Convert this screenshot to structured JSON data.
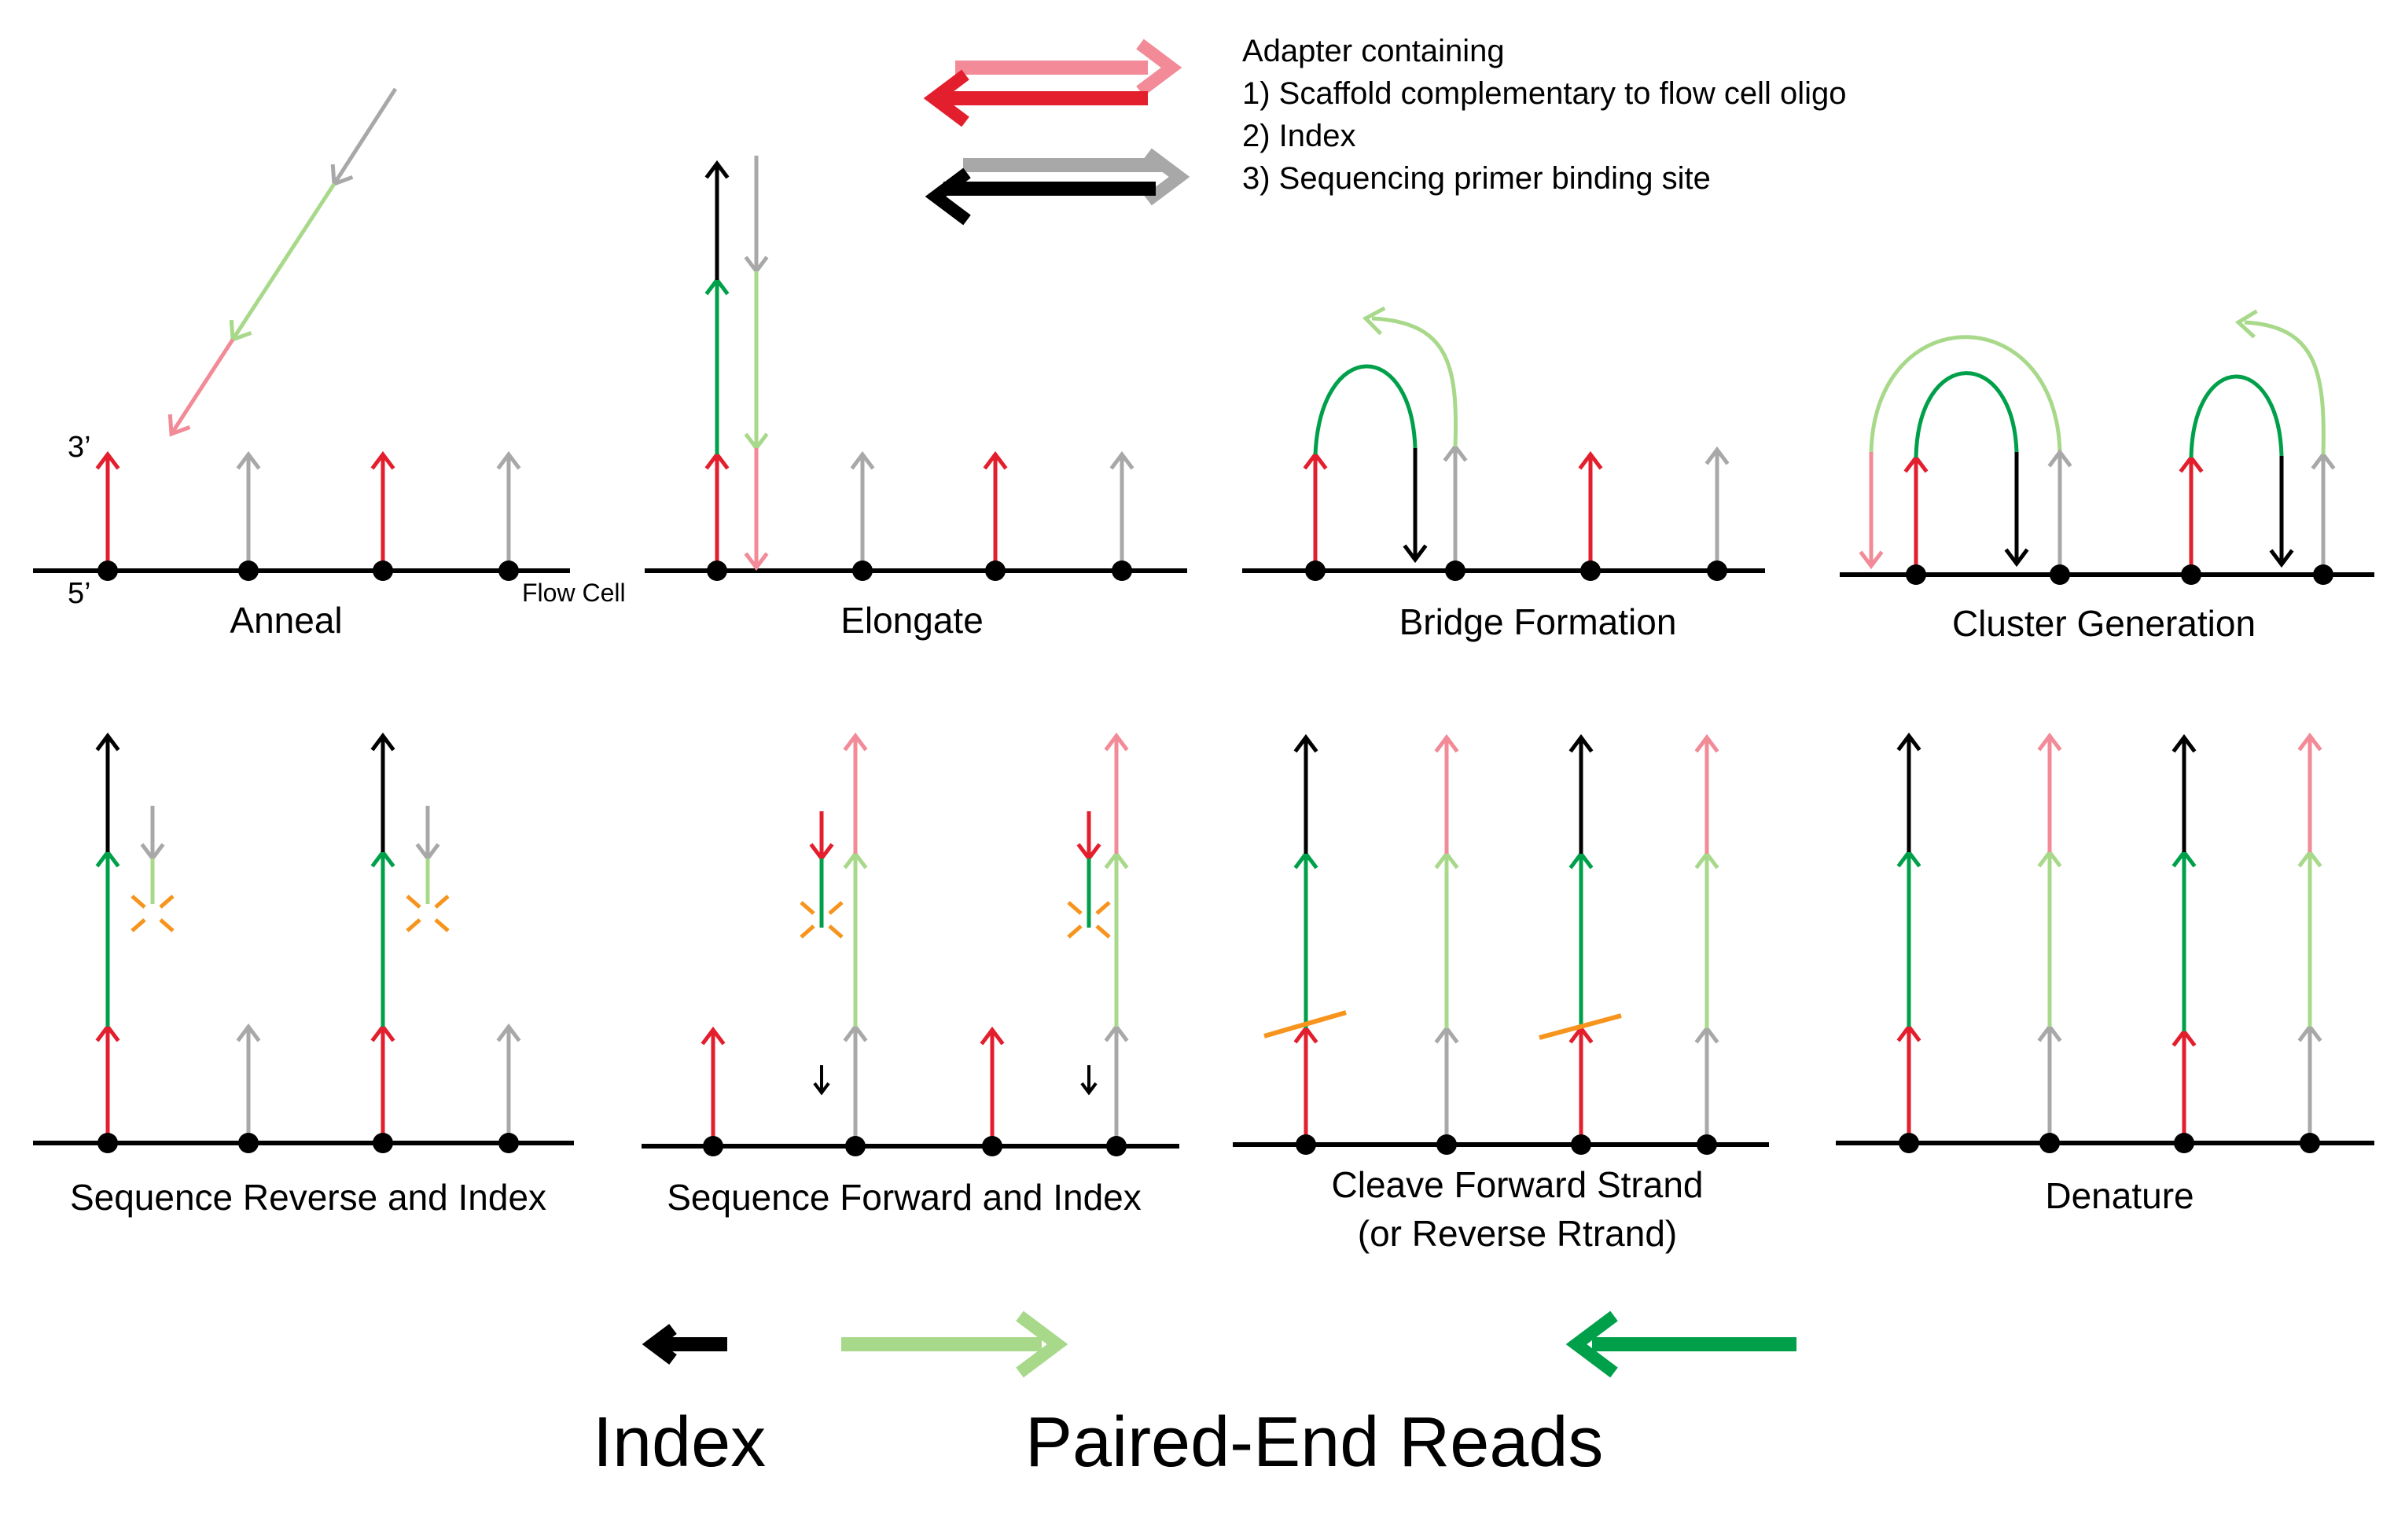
{
  "colors": {
    "red": "#e31e2d",
    "pink": "#f28a97",
    "grey": "#a8a8a8",
    "black": "#000000",
    "light_green": "#a8d98a",
    "dark_green": "#00a04a",
    "orange": "#f7941d"
  },
  "adapter_legend": {
    "title": "Adapter containing",
    "items": [
      "1) Scaffold complementary to flow cell oligo",
      "2) Index",
      "3) Sequencing primer binding site"
    ]
  },
  "end_labels": {
    "three_prime": "3’",
    "five_prime": "5’"
  },
  "flow_cell_label": "Flow Cell",
  "steps": [
    {
      "id": "anneal",
      "label": "Anneal"
    },
    {
      "id": "elongate",
      "label": "Elongate"
    },
    {
      "id": "bridge-formation",
      "label": "Bridge Formation"
    },
    {
      "id": "cluster-generation",
      "label": "Cluster Generation"
    },
    {
      "id": "sequence-reverse-and-index",
      "label": "Sequence Reverse and Index"
    },
    {
      "id": "sequence-forward-and-index",
      "label": "Sequence Forward and Index"
    },
    {
      "id": "cleave-forward-strand",
      "label": "Cleave Forward Strand",
      "label_line2": "(or Reverse Rtrand)"
    },
    {
      "id": "denature",
      "label": "Denature"
    }
  ],
  "bottom_legend": {
    "index_label": "Index",
    "paired_end_label": "Paired-End Reads"
  }
}
